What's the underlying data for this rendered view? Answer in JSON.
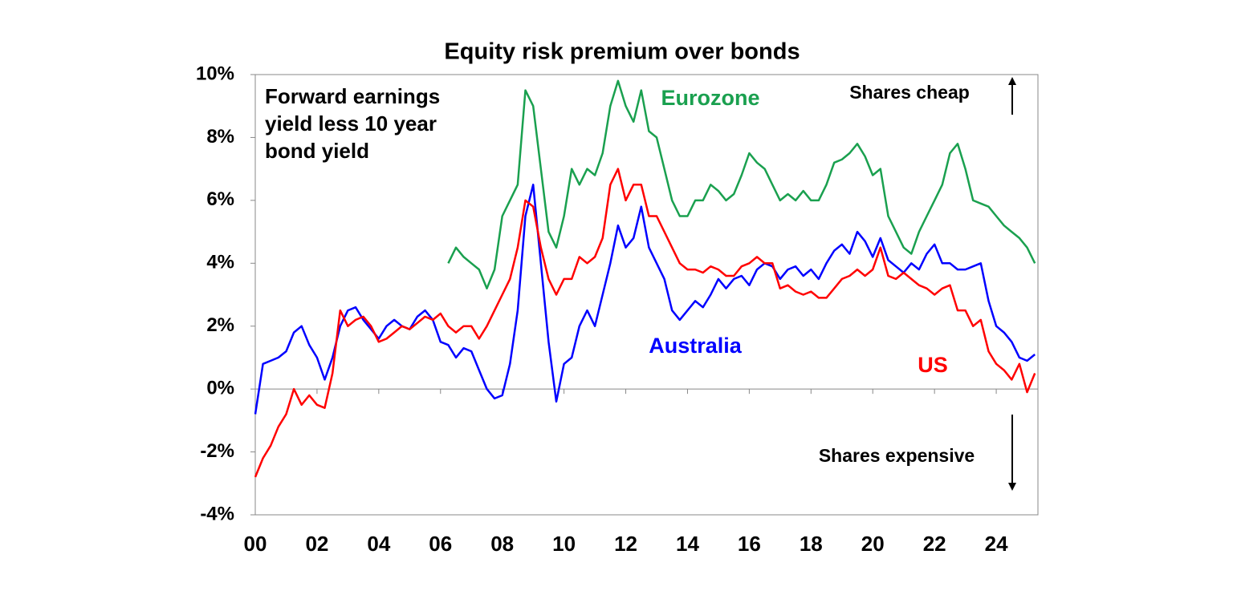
{
  "chart_data": {
    "type": "line",
    "title": "Equity risk premium over bonds",
    "annotation_lines": [
      "Forward earnings",
      "yield less 10 year",
      "bond yield"
    ],
    "note_top": "Shares cheap",
    "note_bottom": "Shares expensive",
    "xlim": [
      2000,
      2025.35
    ],
    "xticks": [
      {
        "value": 2000,
        "label": "00"
      },
      {
        "value": 2002,
        "label": "02"
      },
      {
        "value": 2004,
        "label": "04"
      },
      {
        "value": 2006,
        "label": "06"
      },
      {
        "value": 2008,
        "label": "08"
      },
      {
        "value": 2010,
        "label": "10"
      },
      {
        "value": 2012,
        "label": "12"
      },
      {
        "value": 2014,
        "label": "14"
      },
      {
        "value": 2016,
        "label": "16"
      },
      {
        "value": 2018,
        "label": "18"
      },
      {
        "value": 2020,
        "label": "20"
      },
      {
        "value": 2022,
        "label": "22"
      },
      {
        "value": 2024,
        "label": "24"
      }
    ],
    "ylim": [
      -4,
      10
    ],
    "yticks": [
      {
        "value": -4,
        "label": "-4%"
      },
      {
        "value": -2,
        "label": "-2%"
      },
      {
        "value": 0,
        "label": "0%"
      },
      {
        "value": 2,
        "label": "2%"
      },
      {
        "value": 4,
        "label": "4%"
      },
      {
        "value": 6,
        "label": "6%"
      },
      {
        "value": 8,
        "label": "8%"
      },
      {
        "value": 10,
        "label": "10%"
      }
    ],
    "x": [
      2000,
      2000.25,
      2000.5,
      2000.75,
      2001,
      2001.25,
      2001.5,
      2001.75,
      2002,
      2002.25,
      2002.5,
      2002.75,
      2003,
      2003.25,
      2003.5,
      2003.75,
      2004,
      2004.25,
      2004.5,
      2004.75,
      2005,
      2005.25,
      2005.5,
      2005.75,
      2006,
      2006.25,
      2006.5,
      2006.75,
      2007,
      2007.25,
      2007.5,
      2007.75,
      2008,
      2008.25,
      2008.5,
      2008.75,
      2009,
      2009.25,
      2009.5,
      2009.75,
      2010,
      2010.25,
      2010.5,
      2010.75,
      2011,
      2011.25,
      2011.5,
      2011.75,
      2012,
      2012.25,
      2012.5,
      2012.75,
      2013,
      2013.25,
      2013.5,
      2013.75,
      2014,
      2014.25,
      2014.5,
      2014.75,
      2015,
      2015.25,
      2015.5,
      2015.75,
      2016,
      2016.25,
      2016.5,
      2016.75,
      2017,
      2017.25,
      2017.5,
      2017.75,
      2018,
      2018.25,
      2018.5,
      2018.75,
      2019,
      2019.25,
      2019.5,
      2019.75,
      2020,
      2020.25,
      2020.5,
      2020.75,
      2021,
      2021.25,
      2021.5,
      2021.75,
      2022,
      2022.25,
      2022.5,
      2022.75,
      2023,
      2023.25,
      2023.5,
      2023.75,
      2024,
      2024.25,
      2024.5,
      2024.75,
      2025,
      2025.25
    ],
    "series": [
      {
        "name": "Eurozone",
        "color": "#1aa04f",
        "values": [
          null,
          null,
          null,
          null,
          null,
          null,
          null,
          null,
          null,
          null,
          null,
          null,
          null,
          null,
          null,
          null,
          null,
          null,
          null,
          null,
          null,
          null,
          null,
          null,
          null,
          4.0,
          4.5,
          4.2,
          4.0,
          3.8,
          3.2,
          3.8,
          5.5,
          6.0,
          6.5,
          9.5,
          9.0,
          7.0,
          5.0,
          4.5,
          5.5,
          7.0,
          6.5,
          7.0,
          6.8,
          7.5,
          9.0,
          9.8,
          9.0,
          8.5,
          9.5,
          8.2,
          8.0,
          7.0,
          6.0,
          5.5,
          5.5,
          6.0,
          6.0,
          6.5,
          6.3,
          6.0,
          6.2,
          6.8,
          7.5,
          7.2,
          7.0,
          6.5,
          6.0,
          6.2,
          6.0,
          6.3,
          6.0,
          6.0,
          6.5,
          7.2,
          7.3,
          7.5,
          7.8,
          7.4,
          6.8,
          7.0,
          5.5,
          5.0,
          4.5,
          4.3,
          5.0,
          5.5,
          6.0,
          6.5,
          7.5,
          7.8,
          7.0,
          6.0,
          5.9,
          5.8,
          5.5,
          5.2,
          5.0,
          4.8,
          4.5,
          4.0
        ]
      },
      {
        "name": "Australia",
        "color": "#0000ff",
        "values": [
          -0.8,
          0.8,
          0.9,
          1.0,
          1.2,
          1.8,
          2.0,
          1.4,
          1.0,
          0.3,
          1.0,
          2.0,
          2.5,
          2.6,
          2.2,
          1.9,
          1.6,
          2.0,
          2.2,
          2.0,
          1.9,
          2.3,
          2.5,
          2.2,
          1.5,
          1.4,
          1.0,
          1.3,
          1.2,
          0.6,
          0.0,
          -0.3,
          -0.2,
          0.8,
          2.5,
          5.5,
          6.5,
          4.0,
          1.5,
          -0.4,
          0.8,
          1.0,
          2.0,
          2.5,
          2.0,
          3.0,
          4.0,
          5.2,
          4.5,
          4.8,
          5.8,
          4.5,
          4.0,
          3.5,
          2.5,
          2.2,
          2.5,
          2.8,
          2.6,
          3.0,
          3.5,
          3.2,
          3.5,
          3.6,
          3.3,
          3.8,
          4.0,
          3.9,
          3.5,
          3.8,
          3.9,
          3.6,
          3.8,
          3.5,
          4.0,
          4.4,
          4.6,
          4.3,
          5.0,
          4.7,
          4.2,
          4.8,
          4.1,
          3.9,
          3.7,
          4.0,
          3.8,
          4.3,
          4.6,
          4.0,
          4.0,
          3.8,
          3.8,
          3.9,
          4.0,
          2.8,
          2.0,
          1.8,
          1.5,
          1.0,
          0.9,
          1.1
        ]
      },
      {
        "name": "US",
        "color": "#ff0000",
        "values": [
          -2.8,
          -2.2,
          -1.8,
          -1.2,
          -0.8,
          0.0,
          -0.5,
          -0.2,
          -0.5,
          -0.6,
          0.5,
          2.5,
          2.0,
          2.2,
          2.3,
          2.0,
          1.5,
          1.6,
          1.8,
          2.0,
          1.9,
          2.1,
          2.3,
          2.2,
          2.4,
          2.0,
          1.8,
          2.0,
          2.0,
          1.6,
          2.0,
          2.5,
          3.0,
          3.5,
          4.5,
          6.0,
          5.8,
          4.5,
          3.5,
          3.0,
          3.5,
          3.5,
          4.2,
          4.0,
          4.2,
          4.8,
          6.5,
          7.0,
          6.0,
          6.5,
          6.5,
          5.5,
          5.5,
          5.0,
          4.5,
          4.0,
          3.8,
          3.8,
          3.7,
          3.9,
          3.8,
          3.6,
          3.6,
          3.9,
          4.0,
          4.2,
          4.0,
          4.0,
          3.2,
          3.3,
          3.1,
          3.0,
          3.1,
          2.9,
          2.9,
          3.2,
          3.5,
          3.6,
          3.8,
          3.6,
          3.8,
          4.5,
          3.6,
          3.5,
          3.7,
          3.5,
          3.3,
          3.2,
          3.0,
          3.2,
          3.3,
          2.5,
          2.5,
          2.0,
          2.2,
          1.2,
          0.8,
          0.6,
          0.3,
          0.8,
          -0.1,
          0.5
        ]
      }
    ]
  }
}
